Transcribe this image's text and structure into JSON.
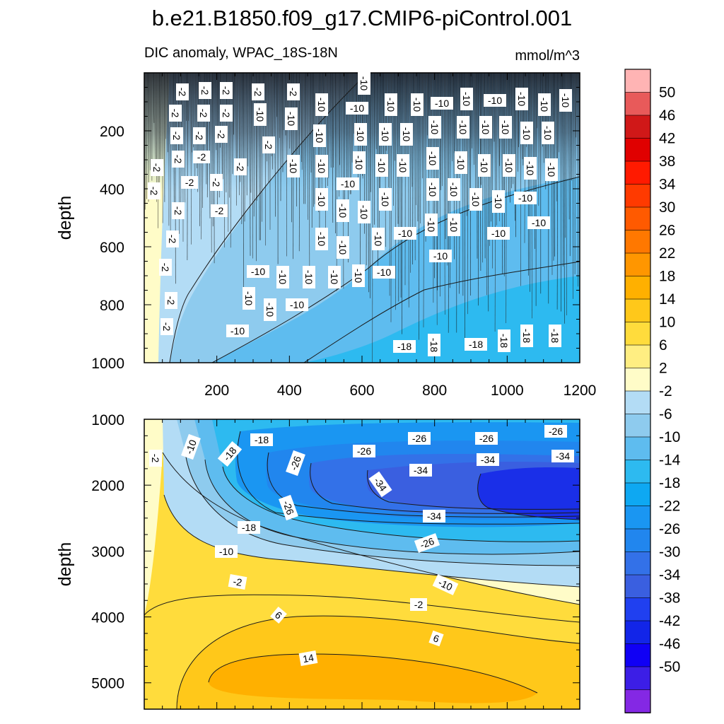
{
  "chart_data": {
    "type": "heatmap",
    "title": "b.e21.B1850.f09_g17.CMIP6-piControl.001",
    "subtitle_left": "DIC anomaly, WPAC_18S-18N",
    "subtitle_right": "mmol/m^3",
    "x_tick_labels": [
      "200",
      "400",
      "600",
      "800",
      "1000",
      "1200"
    ],
    "colorbar": {
      "labels": [
        "50",
        "46",
        "42",
        "38",
        "34",
        "30",
        "26",
        "22",
        "18",
        "14",
        "10",
        "6",
        "2",
        "-2",
        "-6",
        "-10",
        "-14",
        "-18",
        "-22",
        "-26",
        "-30",
        "-34",
        "-38",
        "-42",
        "-46",
        "-50"
      ],
      "colors": [
        "#ffb4b4",
        "#e85a5a",
        "#d01818",
        "#e00000",
        "#ff1a00",
        "#ff3a00",
        "#ff5a00",
        "#ff7800",
        "#ff9600",
        "#ffb000",
        "#ffc81a",
        "#ffdc3c",
        "#ffee82",
        "#fffcc8",
        "#b3dcf5",
        "#8ecbee",
        "#5ebcef",
        "#2dbaf0",
        "#0ea8f2",
        "#1a96f2",
        "#2186ee",
        "#3371e8",
        "#3a5fe0",
        "#2040f0",
        "#1225e8",
        "#1000f5",
        "#3c1ee6",
        "#8428e4"
      ]
    },
    "panels": [
      {
        "name": "upper",
        "ylabel": "depth",
        "ylim": [
          1000,
          0
        ],
        "xlim": [
          0,
          1200
        ],
        "y_tick_labels": [
          "200",
          "400",
          "600",
          "800",
          "1000"
        ],
        "contour_labels": [
          "-2",
          "-10",
          "-18"
        ]
      },
      {
        "name": "lower",
        "ylabel": "depth",
        "ylim": [
          5400,
          1000
        ],
        "xlim": [
          0,
          1200
        ],
        "y_tick_labels": [
          "1000",
          "2000",
          "3000",
          "4000",
          "5000"
        ],
        "contour_labels": [
          "-2",
          "-10",
          "-18",
          "-26",
          "-34",
          "6",
          "14"
        ]
      }
    ]
  }
}
